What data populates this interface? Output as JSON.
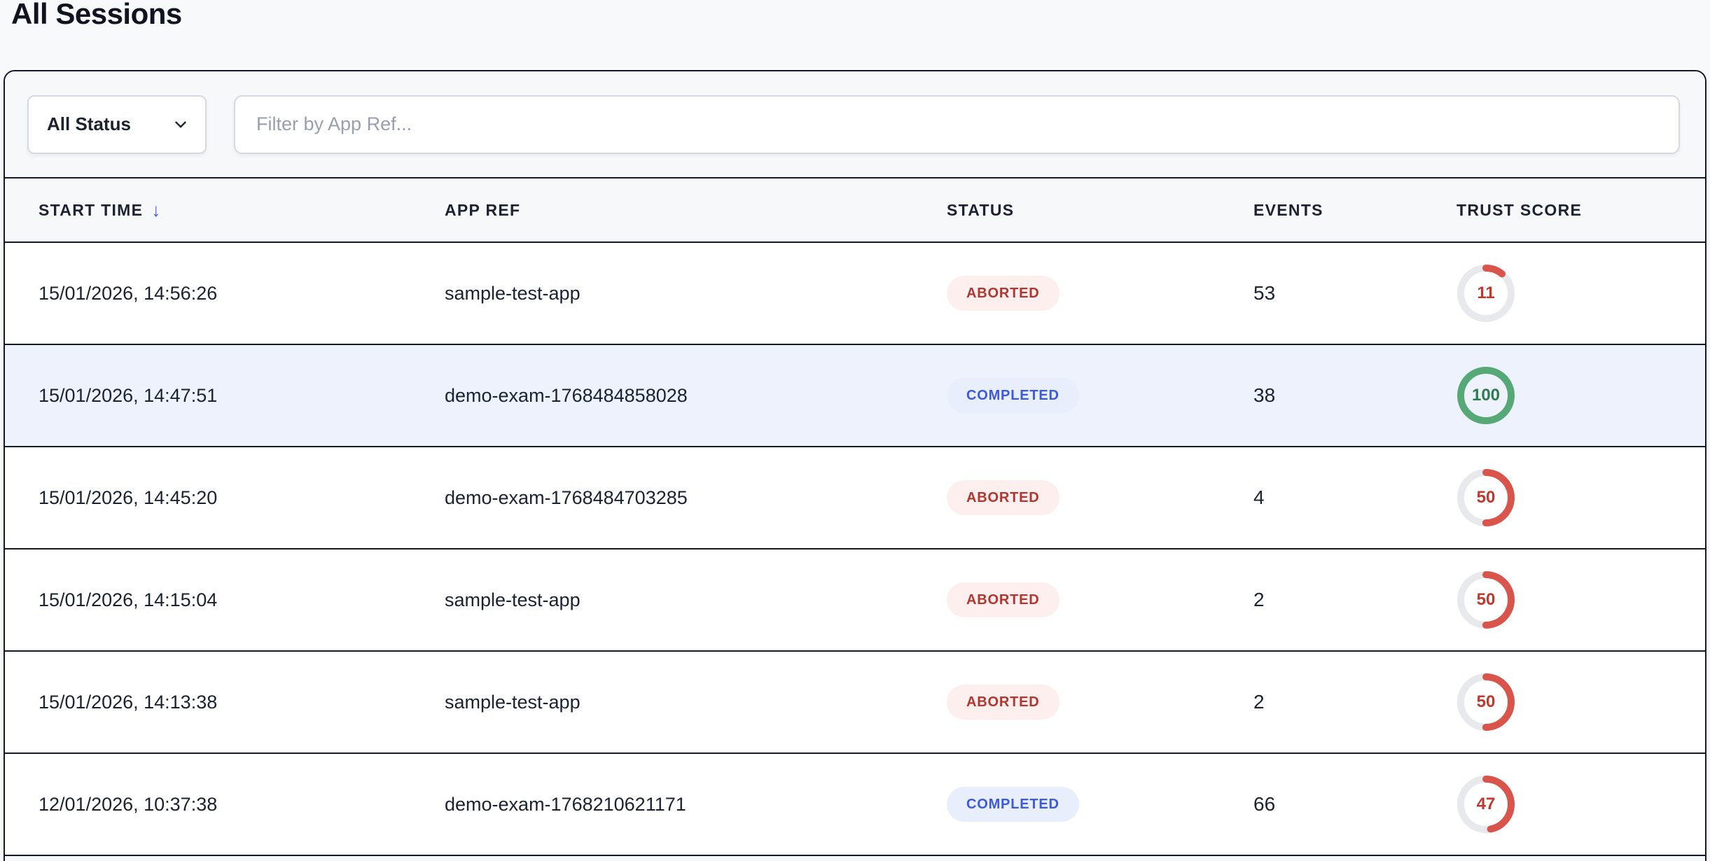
{
  "page": {
    "title": "All Sessions"
  },
  "filters": {
    "status_dropdown": {
      "value": "All Status"
    },
    "app_ref_input": {
      "placeholder": "Filter by App Ref..."
    }
  },
  "table": {
    "sort_icon": "↓",
    "columns": [
      {
        "key": "start_time",
        "label": "START TIME",
        "sorted": "desc"
      },
      {
        "key": "app_ref",
        "label": "APP REF"
      },
      {
        "key": "status",
        "label": "STATUS"
      },
      {
        "key": "events",
        "label": "EVENTS"
      },
      {
        "key": "trust_score",
        "label": "TRUST SCORE"
      }
    ],
    "rows": [
      {
        "start_time": "15/01/2026, 14:56:26",
        "app_ref": "sample-test-app",
        "status": "ABORTED",
        "events": "53",
        "trust_score": 11,
        "highlighted": false
      },
      {
        "start_time": "15/01/2026, 14:47:51",
        "app_ref": "demo-exam-1768484858028",
        "status": "COMPLETED",
        "events": "38",
        "trust_score": 100,
        "highlighted": true
      },
      {
        "start_time": "15/01/2026, 14:45:20",
        "app_ref": "demo-exam-1768484703285",
        "status": "ABORTED",
        "events": "4",
        "trust_score": 50,
        "highlighted": false
      },
      {
        "start_time": "15/01/2026, 14:15:04",
        "app_ref": "sample-test-app",
        "status": "ABORTED",
        "events": "2",
        "trust_score": 50,
        "highlighted": false
      },
      {
        "start_time": "15/01/2026, 14:13:38",
        "app_ref": "sample-test-app",
        "status": "ABORTED",
        "events": "2",
        "trust_score": 50,
        "highlighted": false
      },
      {
        "start_time": "12/01/2026, 10:37:38",
        "app_ref": "demo-exam-1768210621171",
        "status": "COMPLETED",
        "events": "66",
        "trust_score": 47,
        "highlighted": false
      }
    ]
  },
  "colors": {
    "border_dark": "#151a28",
    "row_highlight": "#eef2fc",
    "aborted_text": "#b2362f",
    "aborted_bg": "#fdefee",
    "completed_text": "#3b5ae0",
    "completed_bg": "#e9eefc",
    "ring_track": "#e8e9ed",
    "ring_red": "#d9544a",
    "ring_green": "#57a877",
    "sort_arrow_blue": "#3b5bdb"
  }
}
